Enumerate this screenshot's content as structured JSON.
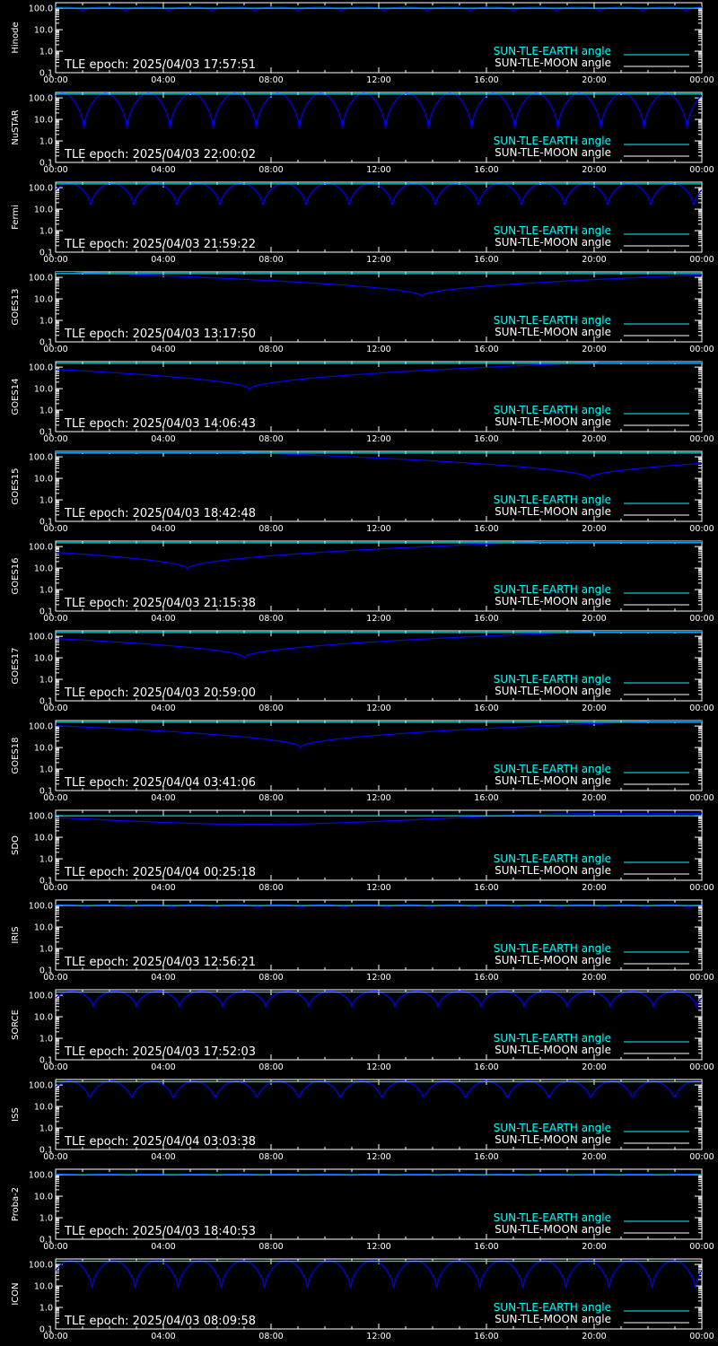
{
  "colors": {
    "background": "#000000",
    "axes": "#ffffff",
    "sun_tle_earth": "#00ffff",
    "sun_tle_moon": "#0000ff",
    "legend_moon_text": "#ffffff"
  },
  "legend": {
    "earth_label": "SUN-TLE-EARTH angle",
    "moon_label": "SUN-TLE-MOON angle",
    "placement": "bottom-right"
  },
  "chart_data": {
    "type": "line",
    "y_scale": "log",
    "ylim": [
      0.1,
      180
    ],
    "y_ticks": [
      "100.0",
      "10.0",
      "1.0",
      "0.1"
    ],
    "x_ticks": [
      "00:00",
      "04:00",
      "08:00",
      "12:00",
      "16:00",
      "20:00",
      "00:00"
    ],
    "xlim_hours": [
      0,
      24
    ],
    "panels": [
      {
        "satellite": "Hinode",
        "epoch": "TLE epoch: 2025/04/03 17:57:51",
        "earth_curve": {
          "kind": "orbital",
          "period_h": 1.6,
          "min": 75,
          "max": 115,
          "phase_h": 0.2
        },
        "moon_curve": {
          "kind": "flat",
          "value": 100
        }
      },
      {
        "satellite": "NuSTAR",
        "epoch": "TLE epoch: 2025/04/03 22:00:02",
        "earth_curve": {
          "kind": "orbital",
          "period_h": 1.6,
          "min": 4,
          "max": 165,
          "phase_h": 0.25
        },
        "moon_curve": {
          "kind": "flat",
          "value": 150
        }
      },
      {
        "satellite": "Fermi",
        "epoch": "TLE epoch: 2025/04/03 21:59:22",
        "earth_curve": {
          "kind": "orbital",
          "period_h": 1.6,
          "min": 15,
          "max": 160,
          "phase_h": 0.5
        },
        "moon_curve": {
          "kind": "flat",
          "value": 150
        }
      },
      {
        "satellite": "GOES13",
        "epoch": "TLE epoch: 2025/04/03 13:17:50",
        "earth_curve": {
          "kind": "vdip",
          "center_h": 13.6,
          "min": 13,
          "max": 170
        },
        "moon_curve": {
          "kind": "flat",
          "value": 150
        }
      },
      {
        "satellite": "GOES14",
        "epoch": "TLE epoch: 2025/04/03 14:06:43",
        "earth_curve": {
          "kind": "vdip",
          "center_h": 7.2,
          "min": 9,
          "max": 165
        },
        "moon_curve": {
          "kind": "flat",
          "value": 150
        }
      },
      {
        "satellite": "GOES15",
        "epoch": "TLE epoch: 2025/04/03 18:42:48",
        "earth_curve": {
          "kind": "vdip",
          "center_h": 19.8,
          "min": 10,
          "max": 165
        },
        "moon_curve": {
          "kind": "flat",
          "value": 150
        }
      },
      {
        "satellite": "GOES16",
        "epoch": "TLE epoch: 2025/04/03 21:15:38",
        "earth_curve": {
          "kind": "vdip",
          "center_h": 4.9,
          "min": 9,
          "max": 165
        },
        "moon_curve": {
          "kind": "flat",
          "value": 150
        }
      },
      {
        "satellite": "GOES17",
        "epoch": "TLE epoch: 2025/04/03 20:59:00",
        "earth_curve": {
          "kind": "vdip",
          "center_h": 7.0,
          "min": 10,
          "max": 165
        },
        "moon_curve": {
          "kind": "flat",
          "value": 150
        }
      },
      {
        "satellite": "GOES18",
        "epoch": "TLE epoch: 2025/04/04 03:41:06",
        "earth_curve": {
          "kind": "vdip",
          "center_h": 9.1,
          "min": 10,
          "max": 165
        },
        "moon_curve": {
          "kind": "flat",
          "value": 150
        }
      },
      {
        "satellite": "SDO",
        "epoch": "TLE epoch: 2025/04/04 00:25:18",
        "earth_curve": {
          "kind": "vdip",
          "center_h": 7.5,
          "min": 40,
          "max": 130,
          "shape": "smooth"
        },
        "moon_curve": {
          "kind": "flat",
          "value": 100
        }
      },
      {
        "satellite": "IRIS",
        "epoch": "TLE epoch: 2025/04/03 12:56:21",
        "earth_curve": {
          "kind": "orbital",
          "period_h": 1.6,
          "min": 80,
          "max": 110,
          "phase_h": 0.3
        },
        "moon_curve": {
          "kind": "flat",
          "value": 100
        }
      },
      {
        "satellite": "SORCE",
        "epoch": "TLE epoch: 2025/04/03 17:52:03",
        "earth_curve": {
          "kind": "orbital",
          "period_h": 1.6,
          "min": 30,
          "max": 155,
          "phase_h": 0.6
        },
        "moon_curve": {
          "kind": "flat",
          "value": 140
        }
      },
      {
        "satellite": "ISS",
        "epoch": "TLE epoch: 2025/04/04 03:03:38",
        "earth_curve": {
          "kind": "orbital",
          "period_h": 1.55,
          "min": 20,
          "max": 150,
          "phase_h": 0.5
        },
        "moon_curve": {
          "kind": "flat",
          "value": 140
        }
      },
      {
        "satellite": "Proba-2",
        "epoch": "TLE epoch: 2025/04/03 18:40:53",
        "earth_curve": {
          "kind": "orbital",
          "period_h": 1.65,
          "min": 90,
          "max": 108,
          "phase_h": 0.2
        },
        "moon_curve": {
          "kind": "flat",
          "value": 100
        }
      },
      {
        "satellite": "ICON",
        "epoch": "TLE epoch: 2025/04/03 08:09:58",
        "earth_curve": {
          "kind": "orbital",
          "period_h": 1.6,
          "min": 8,
          "max": 150,
          "phase_h": 0.55
        },
        "moon_curve": {
          "kind": "flat",
          "value": 140
        }
      }
    ]
  }
}
